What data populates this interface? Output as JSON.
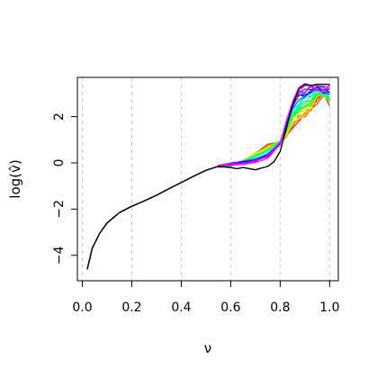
{
  "chart_data": {
    "type": "line",
    "title": "",
    "xlabel": "ν",
    "ylabel": "log(v̂)",
    "xlim": [
      -0.02,
      1.035
    ],
    "ylim": [
      -5.1,
      3.7
    ],
    "x_ticks": [
      0.0,
      0.2,
      0.4,
      0.6,
      0.8,
      1.0
    ],
    "x_tick_labels": [
      "0.0",
      "0.2",
      "0.4",
      "0.6",
      "0.8",
      "1.0"
    ],
    "y_ticks": [
      -4,
      -2,
      0,
      2
    ],
    "y_tick_labels": [
      "−4",
      "−2",
      "0",
      "2"
    ],
    "grid": "vertical dashed gray lines at x ticks",
    "legend": "none",
    "common_curve": {
      "x": [
        0.02,
        0.04,
        0.07,
        0.1,
        0.15,
        0.2,
        0.25,
        0.3,
        0.35,
        0.4,
        0.45,
        0.5,
        0.55
      ],
      "y": [
        -4.6,
        -3.7,
        -3.05,
        -2.6,
        -2.15,
        -1.88,
        -1.65,
        -1.4,
        -1.12,
        -0.85,
        -0.58,
        -0.32,
        -0.15
      ]
    },
    "colored_series": {
      "x": [
        0.55,
        0.6,
        0.65,
        0.7,
        0.75,
        0.8,
        0.825,
        0.85,
        0.875,
        0.9,
        0.925,
        0.95,
        0.975,
        1.0
      ],
      "first": {
        "color": "#ff0000",
        "y": [
          -0.2,
          -0.1,
          0.1,
          0.45,
          0.8,
          0.95,
          1.1,
          1.55,
          1.85,
          2.0,
          2.2,
          2.7,
          3.0,
          2.55
        ]
      },
      "last": {
        "color": "#ff00ff",
        "y": [
          -0.1,
          -0.05,
          -0.02,
          0.05,
          0.2,
          0.8,
          1.85,
          2.7,
          3.1,
          3.35,
          3.4,
          3.35,
          3.2,
          3.3
        ]
      },
      "count": 24,
      "hue_start": 0.0,
      "hue_end": 0.86
    },
    "black_series": {
      "color": "#000000",
      "x": [
        0.55,
        0.6,
        0.625,
        0.65,
        0.7,
        0.75,
        0.775,
        0.8,
        0.825,
        0.85,
        0.875,
        0.9,
        0.925,
        0.95,
        0.975,
        1.0
      ],
      "y": [
        -0.15,
        -0.2,
        -0.25,
        -0.2,
        -0.3,
        -0.15,
        0.05,
        0.5,
        1.5,
        2.5,
        3.2,
        3.4,
        3.35,
        3.4,
        3.4,
        3.4
      ]
    }
  }
}
